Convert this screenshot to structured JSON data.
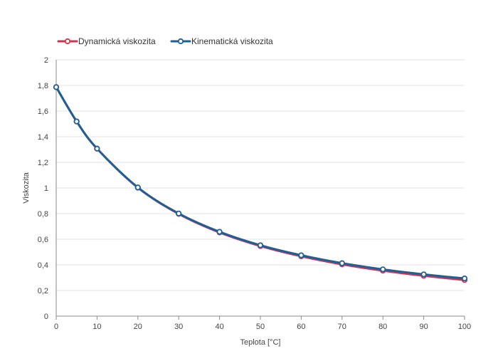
{
  "chart_data": {
    "type": "line",
    "xlabel": "Teplota [°C]",
    "ylabel": "Viskozita",
    "xlim": [
      0,
      100
    ],
    "ylim": [
      0,
      2
    ],
    "x": [
      0,
      5,
      10,
      20,
      30,
      40,
      50,
      60,
      70,
      80,
      90,
      100
    ],
    "x_ticks": [
      "0",
      "10",
      "20",
      "30",
      "40",
      "50",
      "60",
      "70",
      "80",
      "90",
      "100"
    ],
    "x_tick_values": [
      0,
      10,
      20,
      30,
      40,
      50,
      60,
      70,
      80,
      90,
      100
    ],
    "y_ticks": [
      "0",
      "0,2",
      "0,4",
      "0,6",
      "0,8",
      "1",
      "1,2",
      "1,4",
      "1,6",
      "1,8",
      "2"
    ],
    "y_tick_values": [
      0,
      0.2,
      0.4,
      0.6,
      0.8,
      1.0,
      1.2,
      1.4,
      1.6,
      1.8,
      2.0
    ],
    "grid": "horizontal",
    "legend_position": "top-left",
    "series": [
      {
        "name": "Dynamická viskozita",
        "color": "#d0344f",
        "values": [
          1.787,
          1.519,
          1.307,
          1.002,
          0.798,
          0.653,
          0.547,
          0.467,
          0.404,
          0.355,
          0.315,
          0.282
        ]
      },
      {
        "name": "Kinematická viskozita",
        "color": "#1f5f96",
        "values": [
          1.787,
          1.519,
          1.307,
          1.004,
          0.801,
          0.658,
          0.553,
          0.475,
          0.413,
          0.365,
          0.326,
          0.294
        ]
      }
    ]
  }
}
